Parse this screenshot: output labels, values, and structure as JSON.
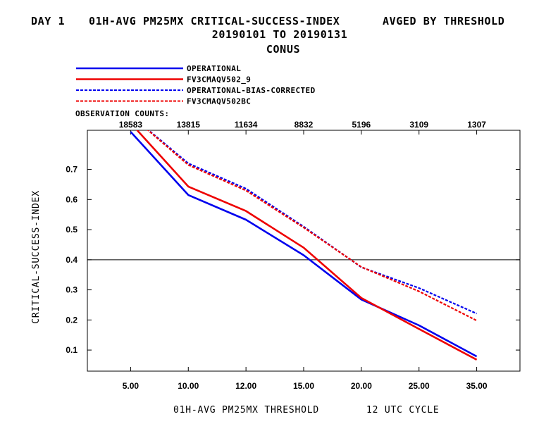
{
  "header": {
    "day": "DAY 1",
    "title": "01H-AVG PM25MX CRITICAL-SUCCESS-INDEX",
    "subtitle_right": "AVGED BY THRESHOLD",
    "date_range": "20190101 TO 20190131",
    "region": "CONUS"
  },
  "observation_counts_label": "OBSERVATION COUNTS:",
  "colors": {
    "blue": "#0000ee",
    "red": "#ee0000",
    "axis": "#000000"
  },
  "chart_data": {
    "type": "line",
    "x": [
      0,
      1,
      2,
      3,
      4,
      5,
      6
    ],
    "categories": [
      "5.00",
      "10.00",
      "12.00",
      "15.00",
      "20.00",
      "25.00",
      "35.00"
    ],
    "observation_counts": [
      "18583",
      "13815",
      "11634",
      "8832",
      "5196",
      "3109",
      "1307"
    ],
    "xlim": [
      -0.75,
      6.75
    ],
    "ylim": [
      0.03,
      0.83
    ],
    "yticks": [
      "0.1",
      "0.2",
      "0.3",
      "0.4",
      "0.5",
      "0.6",
      "0.7"
    ],
    "reference_line": 0.4,
    "xlabel": "01H-AVG PM25MX THRESHOLD",
    "xlabel_right": "12 UTC CYCLE",
    "ylabel": "CRITICAL-SUCCESS-INDEX",
    "grid": false,
    "legend_position": "top-left",
    "series": [
      {
        "name": "OPERATIONAL",
        "color": "#0000ee",
        "dash": "solid",
        "values": [
          0.825,
          0.615,
          0.533,
          0.415,
          0.268,
          0.182,
          0.079
        ]
      },
      {
        "name": "FV3CMAQV502_9",
        "color": "#ee0000",
        "dash": "solid",
        "values": [
          0.854,
          0.643,
          0.562,
          0.44,
          0.273,
          0.17,
          0.068
        ]
      },
      {
        "name": "OPERATIONAL-BIAS-CORRECTED",
        "color": "#0000ee",
        "dash": "dashed",
        "values": [
          0.88,
          0.72,
          0.636,
          0.51,
          0.375,
          0.306,
          0.221
        ]
      },
      {
        "name": "FV3CMAQV502BC",
        "color": "#ee0000",
        "dash": "dashed",
        "values": [
          0.88,
          0.715,
          0.63,
          0.507,
          0.376,
          0.295,
          0.198
        ]
      }
    ]
  }
}
